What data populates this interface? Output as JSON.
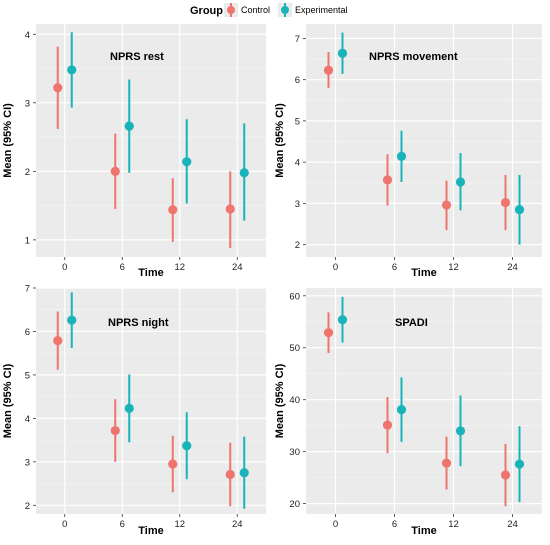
{
  "legend": {
    "title": "Group",
    "entries": [
      {
        "name": "Control",
        "color": "#F0746E"
      },
      {
        "name": "Experimental",
        "color": "#18B4BA"
      }
    ]
  },
  "chart_data": [
    {
      "type": "scatter",
      "title": "NPRS rest",
      "xlabel": "Time",
      "ylabel": "Mean (95% CI)",
      "categories": [
        "0",
        "6",
        "12",
        "24"
      ],
      "ylim": [
        0.75,
        4.15
      ],
      "yticks": [
        1,
        2,
        3,
        4
      ],
      "series": [
        {
          "name": "Control",
          "color": "#F0746E",
          "mean": [
            3.22,
            2.0,
            1.44,
            1.45
          ],
          "lower": [
            2.62,
            1.45,
            0.97,
            0.88
          ],
          "upper": [
            3.82,
            2.55,
            1.9,
            2.0
          ]
        },
        {
          "name": "Experimental",
          "color": "#18B4BA",
          "mean": [
            3.48,
            2.66,
            2.14,
            1.98
          ],
          "lower": [
            2.93,
            1.98,
            1.53,
            1.28
          ],
          "upper": [
            4.03,
            3.34,
            2.76,
            2.7
          ]
        }
      ]
    },
    {
      "type": "scatter",
      "title": "NPRS movement",
      "xlabel": "Time",
      "ylabel": "Mean (95% CI)",
      "categories": [
        "0",
        "6",
        "12",
        "24"
      ],
      "ylim": [
        1.7,
        7.35
      ],
      "yticks": [
        2,
        3,
        4,
        5,
        6,
        7
      ],
      "series": [
        {
          "name": "Control",
          "color": "#F0746E",
          "mean": [
            6.23,
            3.57,
            2.96,
            3.02
          ],
          "lower": [
            5.8,
            2.95,
            2.35,
            2.35
          ],
          "upper": [
            6.67,
            4.19,
            3.55,
            3.69
          ]
        },
        {
          "name": "Experimental",
          "color": "#18B4BA",
          "mean": [
            6.64,
            4.14,
            3.52,
            2.85
          ],
          "lower": [
            6.14,
            3.52,
            2.83,
            2.0
          ],
          "upper": [
            7.14,
            4.76,
            4.22,
            3.69
          ]
        }
      ]
    },
    {
      "type": "scatter",
      "title": "NPRS night",
      "xlabel": "Time",
      "ylabel": "Mean (95% CI)",
      "categories": [
        "0",
        "6",
        "12",
        "24"
      ],
      "ylim": [
        1.8,
        7.0
      ],
      "yticks": [
        2,
        3,
        4,
        5,
        6,
        7
      ],
      "series": [
        {
          "name": "Control",
          "color": "#F0746E",
          "mean": [
            5.79,
            3.72,
            2.95,
            2.71
          ],
          "lower": [
            5.12,
            3.0,
            2.3,
            1.98
          ],
          "upper": [
            6.46,
            4.44,
            3.6,
            3.44
          ]
        },
        {
          "name": "Experimental",
          "color": "#18B4BA",
          "mean": [
            6.26,
            4.23,
            3.37,
            2.75
          ],
          "lower": [
            5.62,
            3.45,
            2.6,
            1.92
          ],
          "upper": [
            6.9,
            5.01,
            4.14,
            3.58
          ]
        }
      ]
    },
    {
      "type": "scatter",
      "title": "SPADI",
      "xlabel": "Time",
      "ylabel": "Mean (95% CI)",
      "categories": [
        "0",
        "6",
        "12",
        "24"
      ],
      "ylim": [
        18,
        61.5
      ],
      "yticks": [
        20,
        30,
        40,
        50,
        60
      ],
      "series": [
        {
          "name": "Control",
          "color": "#F0746E",
          "mean": [
            52.9,
            35.1,
            27.8,
            25.5
          ],
          "lower": [
            49.0,
            29.7,
            22.7,
            19.5
          ],
          "upper": [
            56.8,
            40.5,
            32.9,
            31.5
          ]
        },
        {
          "name": "Experimental",
          "color": "#18B4BA",
          "mean": [
            55.4,
            38.1,
            34.0,
            27.6
          ],
          "lower": [
            51.0,
            31.9,
            27.2,
            20.3
          ],
          "upper": [
            59.8,
            44.3,
            40.8,
            34.9
          ]
        }
      ]
    }
  ]
}
